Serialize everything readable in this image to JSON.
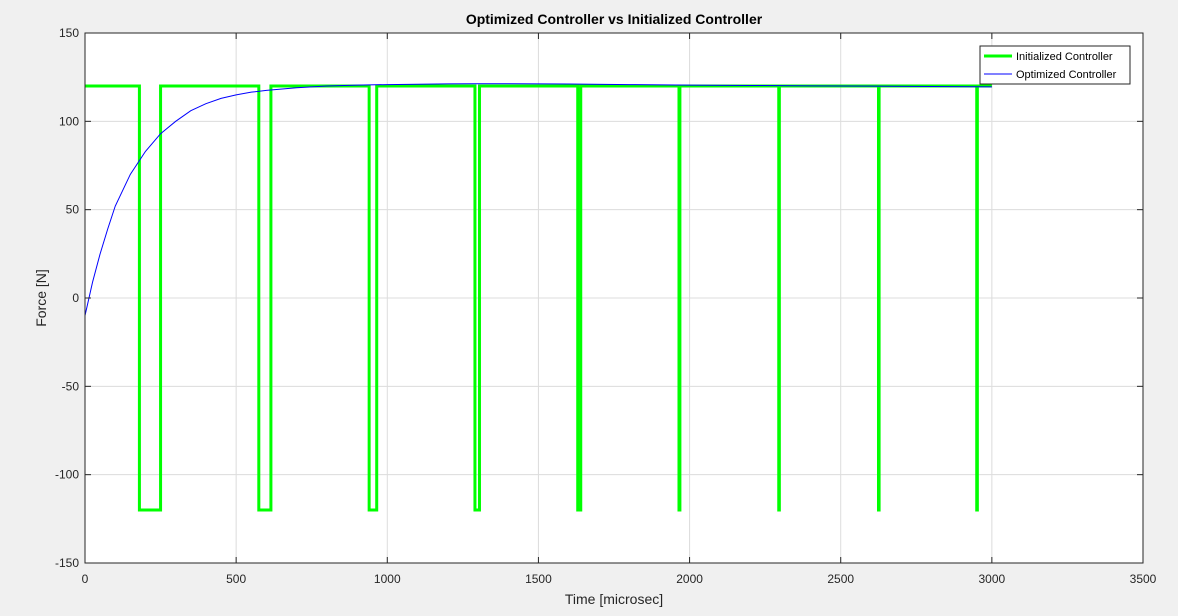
{
  "chart_data": {
    "type": "line",
    "title": "Optimized Controller vs Initialized Controller",
    "xlabel": "Time [microsec]",
    "ylabel": "Force [N]",
    "xlim": [
      0,
      3500
    ],
    "ylim": [
      -150,
      150
    ],
    "xticks": [
      0,
      500,
      1000,
      1500,
      2000,
      2500,
      3000,
      3500
    ],
    "yticks": [
      -150,
      -100,
      -50,
      0,
      50,
      100,
      150
    ],
    "xtick_labels": [
      "0",
      "500",
      "1000",
      "1500",
      "2000",
      "2500",
      "3000",
      "3500"
    ],
    "ytick_labels": [
      "-150",
      "-100",
      "-50",
      "0",
      "50",
      "100",
      "150"
    ],
    "grid": true,
    "legend_position": "top-right",
    "series": [
      {
        "name": "Initialized Controller",
        "color": "#00ff00",
        "x": [
          0,
          180,
          180,
          250,
          250,
          575,
          575,
          615,
          615,
          940,
          940,
          965,
          965,
          1290,
          1290,
          1305,
          1305,
          1630,
          1630,
          1640,
          1640,
          1965,
          1965,
          1968,
          1968,
          2295,
          2295,
          2297,
          2297,
          2625,
          2625,
          2627,
          2627,
          2950,
          2950,
          2952,
          2952,
          3000
        ],
        "y": [
          120,
          120,
          -120,
          -120,
          120,
          120,
          -120,
          -120,
          120,
          120,
          -120,
          -120,
          120,
          120,
          -120,
          -120,
          120,
          120,
          -120,
          -120,
          120,
          120,
          -120,
          -120,
          120,
          120,
          -120,
          -120,
          120,
          120,
          -120,
          -120,
          120,
          120,
          -120,
          -120,
          120,
          120
        ]
      },
      {
        "name": "Optimized Controller",
        "color": "#0000ff",
        "x": [
          0,
          25,
          50,
          75,
          100,
          150,
          200,
          250,
          300,
          350,
          400,
          450,
          500,
          550,
          600,
          700,
          800,
          900,
          1000,
          1100,
          1200,
          1300,
          1400,
          1500,
          1600,
          1800,
          2000,
          2200,
          2400,
          2600,
          2800,
          3000
        ],
        "y": [
          -10,
          9,
          25,
          39,
          52,
          70,
          83,
          93,
          100,
          106,
          110,
          113,
          115,
          116.5,
          117.5,
          119,
          120,
          120.5,
          120.8,
          121,
          121.2,
          121.3,
          121.3,
          121.2,
          121.1,
          120.8,
          120.5,
          120.3,
          120.1,
          119.9,
          119.7,
          119.5
        ]
      }
    ]
  }
}
